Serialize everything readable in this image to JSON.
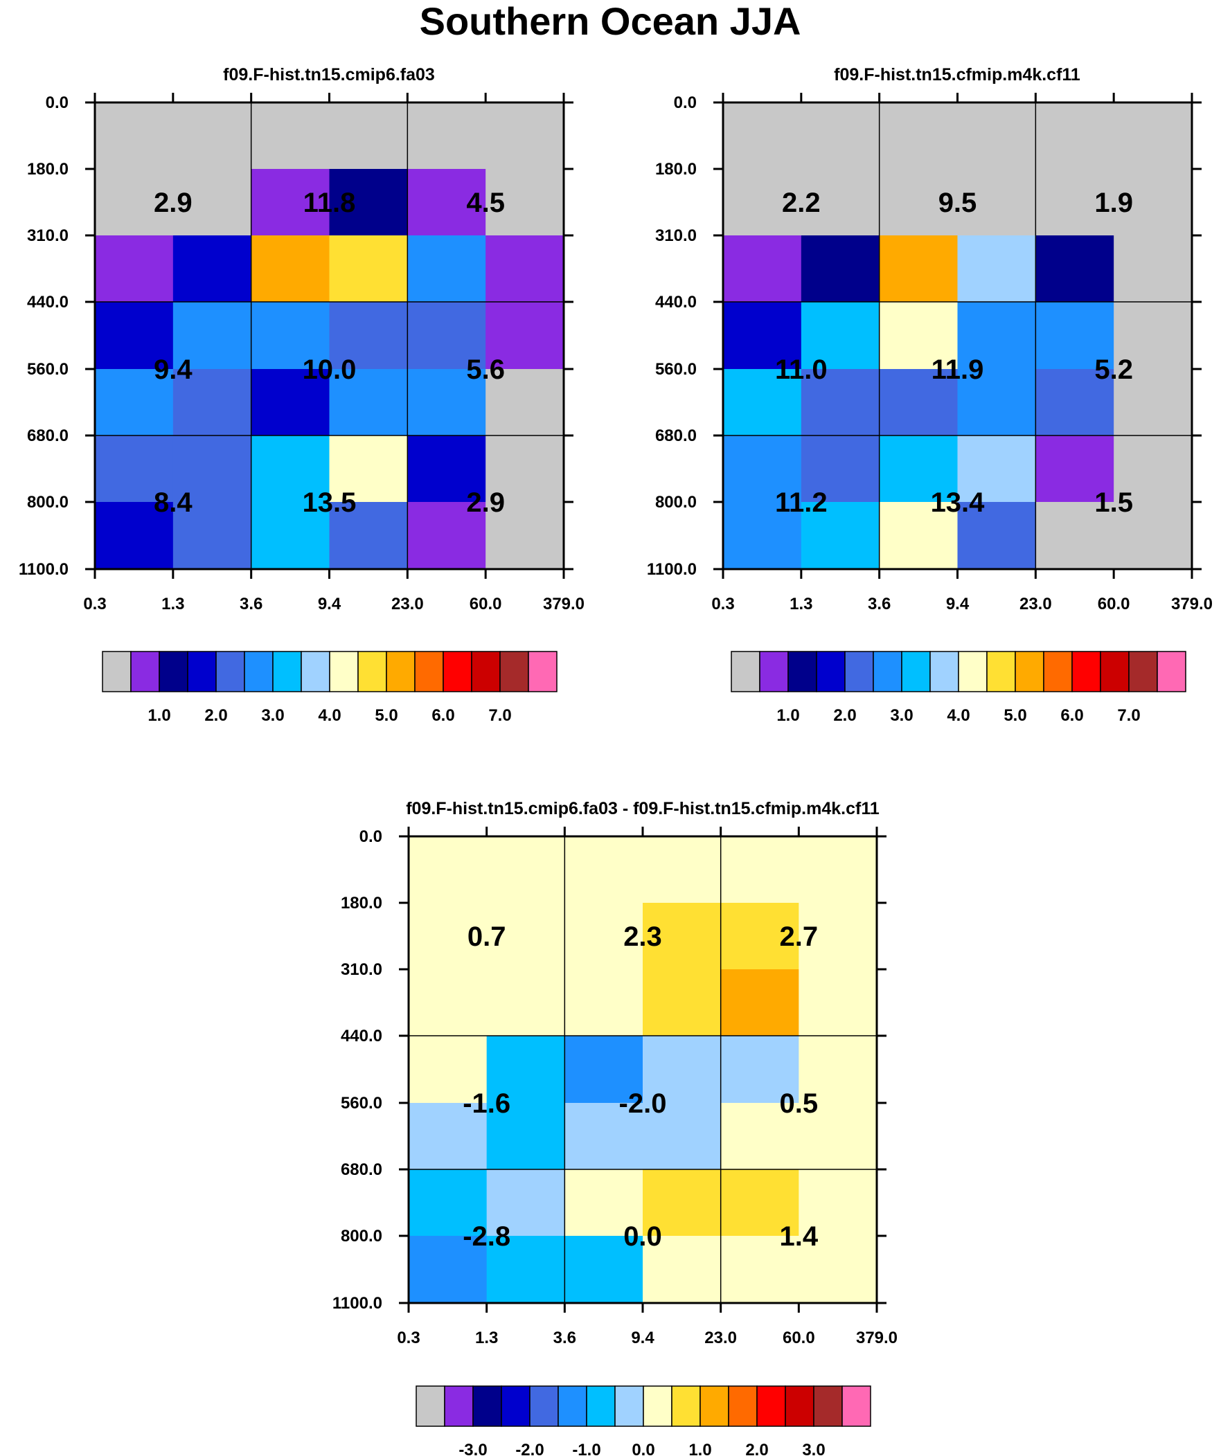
{
  "title": "Southern Ocean JJA",
  "axes": {
    "x_ticks": [
      "0.3",
      "1.3",
      "3.6",
      "9.4",
      "23.0",
      "60.0",
      "379.0"
    ],
    "y_ticks": [
      "0.0",
      "180.0",
      "310.0",
      "440.0",
      "560.0",
      "680.0",
      "800.0",
      "1100.0"
    ]
  },
  "colorbar": {
    "colors": [
      "#c8c8c8",
      "#8a2be2",
      "#00008b",
      "#0000cd",
      "#4169e1",
      "#1e90ff",
      "#00bfff",
      "#a0d2ff",
      "#ffffc8",
      "#ffe033",
      "#ffaa00",
      "#ff6a00",
      "#ff0000",
      "#cc0000",
      "#a52a2a",
      "#ff69b4"
    ],
    "abs_labels": [
      "1.0",
      "2.0",
      "3.0",
      "4.0",
      "5.0",
      "6.0",
      "7.0"
    ],
    "diff_labels": [
      "-3.0",
      "-2.0",
      "-1.0",
      "0.0",
      "1.0",
      "2.0",
      "3.0"
    ]
  },
  "chart_data": [
    {
      "type": "heatmap",
      "title": "f09.F-hist.tn15.cmip6.fa03",
      "x_bins": [
        "0.3",
        "1.3",
        "3.6",
        "9.4",
        "23.0",
        "60.0",
        "379.0"
      ],
      "y_bins": [
        "0.0",
        "180.0",
        "310.0",
        "440.0",
        "560.0",
        "680.0",
        "800.0",
        "1100.0"
      ],
      "cell_color_index": [
        [
          0,
          0,
          0,
          0,
          0,
          0
        ],
        [
          0,
          0,
          1,
          2,
          1,
          0
        ],
        [
          1,
          3,
          10,
          9,
          5,
          1
        ],
        [
          3,
          5,
          5,
          4,
          4,
          1
        ],
        [
          5,
          4,
          3,
          5,
          5,
          0
        ],
        [
          4,
          4,
          6,
          8,
          3,
          0
        ],
        [
          3,
          4,
          6,
          4,
          1,
          0
        ]
      ],
      "group_values": [
        [
          "2.9",
          "11.8",
          "4.5"
        ],
        [
          "9.4",
          "10.0",
          "5.6"
        ],
        [
          "8.4",
          "13.5",
          "2.9"
        ]
      ],
      "colorbar_labels": [
        "1.0",
        "2.0",
        "3.0",
        "4.0",
        "5.0",
        "6.0",
        "7.0"
      ]
    },
    {
      "type": "heatmap",
      "title": "f09.F-hist.tn15.cfmip.m4k.cf11",
      "x_bins": [
        "0.3",
        "1.3",
        "3.6",
        "9.4",
        "23.0",
        "60.0",
        "379.0"
      ],
      "y_bins": [
        "0.0",
        "180.0",
        "310.0",
        "440.0",
        "560.0",
        "680.0",
        "800.0",
        "1100.0"
      ],
      "cell_color_index": [
        [
          0,
          0,
          0,
          0,
          0,
          0
        ],
        [
          0,
          0,
          0,
          0,
          0,
          0
        ],
        [
          1,
          2,
          10,
          7,
          2,
          0
        ],
        [
          3,
          6,
          8,
          5,
          5,
          0
        ],
        [
          6,
          4,
          4,
          5,
          4,
          0
        ],
        [
          5,
          4,
          6,
          7,
          1,
          0
        ],
        [
          5,
          6,
          8,
          4,
          0,
          0
        ]
      ],
      "group_values": [
        [
          "2.2",
          "9.5",
          "1.9"
        ],
        [
          "11.0",
          "11.9",
          "5.2"
        ],
        [
          "11.2",
          "13.4",
          "1.5"
        ]
      ],
      "colorbar_labels": [
        "1.0",
        "2.0",
        "3.0",
        "4.0",
        "5.0",
        "6.0",
        "7.0"
      ]
    },
    {
      "type": "heatmap",
      "title": "f09.F-hist.tn15.cmip6.fa03 - f09.F-hist.tn15.cfmip.m4k.cf11",
      "x_bins": [
        "0.3",
        "1.3",
        "3.6",
        "9.4",
        "23.0",
        "60.0",
        "379.0"
      ],
      "y_bins": [
        "0.0",
        "180.0",
        "310.0",
        "440.0",
        "560.0",
        "680.0",
        "800.0",
        "1100.0"
      ],
      "cell_color_index": [
        [
          8,
          8,
          8,
          8,
          8,
          8
        ],
        [
          8,
          8,
          8,
          9,
          9,
          8
        ],
        [
          8,
          8,
          8,
          9,
          10,
          8
        ],
        [
          8,
          6,
          5,
          7,
          7,
          8
        ],
        [
          7,
          6,
          7,
          7,
          8,
          8
        ],
        [
          6,
          7,
          8,
          9,
          9,
          8
        ],
        [
          5,
          6,
          6,
          8,
          8,
          8
        ]
      ],
      "group_values": [
        [
          "0.7",
          "2.3",
          "2.7"
        ],
        [
          "-1.6",
          "-2.0",
          "0.5"
        ],
        [
          "-2.8",
          "0.0",
          "1.4"
        ]
      ],
      "colorbar_labels": [
        "-3.0",
        "-2.0",
        "-1.0",
        "0.0",
        "1.0",
        "2.0",
        "3.0"
      ]
    }
  ]
}
